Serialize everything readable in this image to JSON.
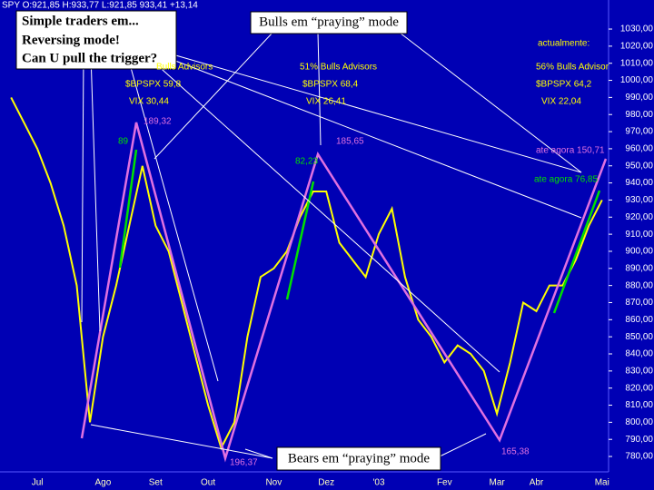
{
  "chart_data": {
    "type": "line",
    "title": "SPY O:921,85 H:933,77 L:921,85 933,41 +13,14",
    "categories": [
      null,
      null,
      "Jul",
      null,
      null,
      null,
      null,
      "Ago",
      null,
      null,
      null,
      "Set",
      null,
      null,
      null,
      "Out",
      null,
      null,
      null,
      null,
      "Nov",
      null,
      null,
      null,
      "Dez",
      null,
      null,
      null,
      "'03",
      null,
      null,
      null,
      null,
      "Fev",
      null,
      null,
      null,
      "Mar",
      null,
      null,
      "Abr",
      null,
      null,
      null,
      null,
      "Mai"
    ],
    "values": [
      990,
      975,
      960,
      940,
      915,
      880,
      800,
      850,
      880,
      915,
      950,
      915,
      900,
      870,
      840,
      810,
      785,
      800,
      850,
      885,
      890,
      900,
      920,
      935,
      935,
      905,
      895,
      885,
      910,
      925,
      885,
      860,
      850,
      835,
      845,
      840,
      830,
      805,
      835,
      870,
      865,
      880,
      880,
      895,
      915,
      930
    ],
    "color": "#ffff00",
    "ylim": [
      771,
      1047
    ],
    "yticks": [
      {
        "value": 780,
        "label": "780,00"
      },
      {
        "value": 790,
        "label": "790,00"
      },
      {
        "value": 800,
        "label": "800,00"
      },
      {
        "value": 810,
        "label": "810,00"
      },
      {
        "value": 820,
        "label": "820,00"
      },
      {
        "value": 830,
        "label": "830,00"
      },
      {
        "value": 840,
        "label": "840,00"
      },
      {
        "value": 850,
        "label": "850,00"
      },
      {
        "value": 860,
        "label": "860,00"
      },
      {
        "value": 870,
        "label": "870,00"
      },
      {
        "value": 880,
        "label": "880,00"
      },
      {
        "value": 890,
        "label": "890,00"
      },
      {
        "value": 900,
        "label": "900,00"
      },
      {
        "value": 910,
        "label": "910,00"
      },
      {
        "value": 920,
        "label": "920,00"
      },
      {
        "value": 930,
        "label": "930,00"
      },
      {
        "value": 940,
        "label": "940,00"
      },
      {
        "value": 950,
        "label": "950,00"
      },
      {
        "value": 960,
        "label": "960,00"
      },
      {
        "value": 970,
        "label": "970,00"
      },
      {
        "value": 980,
        "label": "980,00"
      },
      {
        "value": 990,
        "label": "990,00"
      },
      {
        "value": 1000,
        "label": "1000,00"
      },
      {
        "value": 1010,
        "label": "1010,00"
      },
      {
        "value": 1020,
        "label": "1020,00"
      },
      {
        "value": 1030,
        "label": "1030,00"
      }
    ],
    "annotations": [
      "89",
      "189,32",
      "82,23",
      "185,65",
      "196,37",
      "165,38",
      "ate agora 150,71",
      "ate agora 76,85",
      "Bulls Advisors",
      "$BPSPX 59,8",
      "VIX 30,44",
      "51% Bulls Advisors",
      "$BPSPX 68,4",
      "VIX 26,41",
      "actualmente:",
      "56% Bulls Advisor",
      "$BPSPX 64,2",
      "VIX 22,04"
    ],
    "callouts": [
      [
        "Simple traders em...",
        "Reversing mode!",
        "Can U pull the trigger?"
      ],
      "Bulls em “praying” mode",
      "Bears em “praying” mode"
    ]
  }
}
